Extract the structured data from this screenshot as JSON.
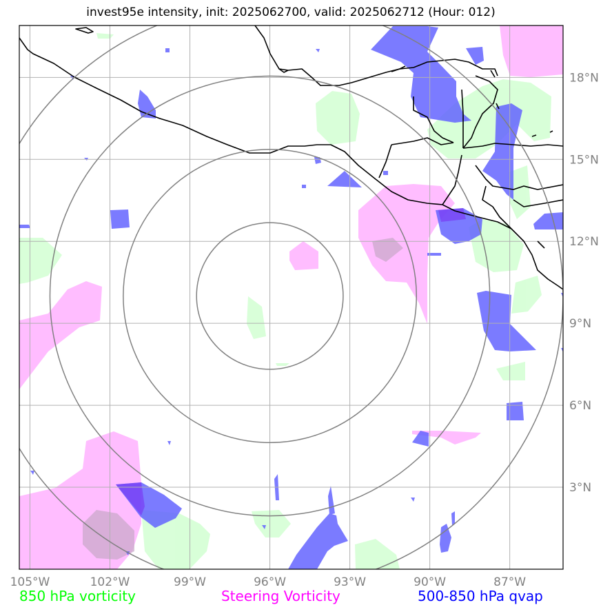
{
  "title": "invest95e intensity, init: 2025062700, valid: 2025062712 (Hour: 012)",
  "legend": [
    {
      "label": "850 hPa vorticity",
      "color": "#00ff00"
    },
    {
      "label": "Steering Vorticity",
      "color": "#ff00ff"
    },
    {
      "label": "500-850 hPa qvap",
      "color": "#0000ff"
    }
  ],
  "map": {
    "lon_ticks": [
      {
        "lon": -105,
        "label": "105°W"
      },
      {
        "lon": -102,
        "label": "102°W"
      },
      {
        "lon": -99,
        "label": "99°W"
      },
      {
        "lon": -96,
        "label": "96°W"
      },
      {
        "lon": -93,
        "label": "93°W"
      },
      {
        "lon": -90,
        "label": "90°W"
      },
      {
        "lon": -87,
        "label": "87°W"
      }
    ],
    "lat_ticks": [
      {
        "lat": 3,
        "label": "3°N"
      },
      {
        "lat": 6,
        "label": "6°N"
      },
      {
        "lat": 9,
        "label": "9°N"
      },
      {
        "lat": 12,
        "label": "12°N"
      },
      {
        "lat": 15,
        "label": "15°N"
      },
      {
        "lat": 18,
        "label": "18°N"
      }
    ],
    "extent": {
      "lon_min": -105.4,
      "lon_max": -85.0,
      "lat_min": 0.0,
      "lat_max": 19.9
    },
    "storm_center": {
      "lon": -96.0,
      "lat": 10.0
    },
    "range_rings_deg": [
      2.75,
      5.5,
      8.25,
      11.0
    ],
    "colors": {
      "vorticity_850": "#ccffcc",
      "steering_vorticity": "#ff99ff",
      "qvap": "#6464ff",
      "grid": "#b0b0b0",
      "rings": "#808080",
      "coast": "#000000",
      "tick_label": "#808080"
    }
  }
}
